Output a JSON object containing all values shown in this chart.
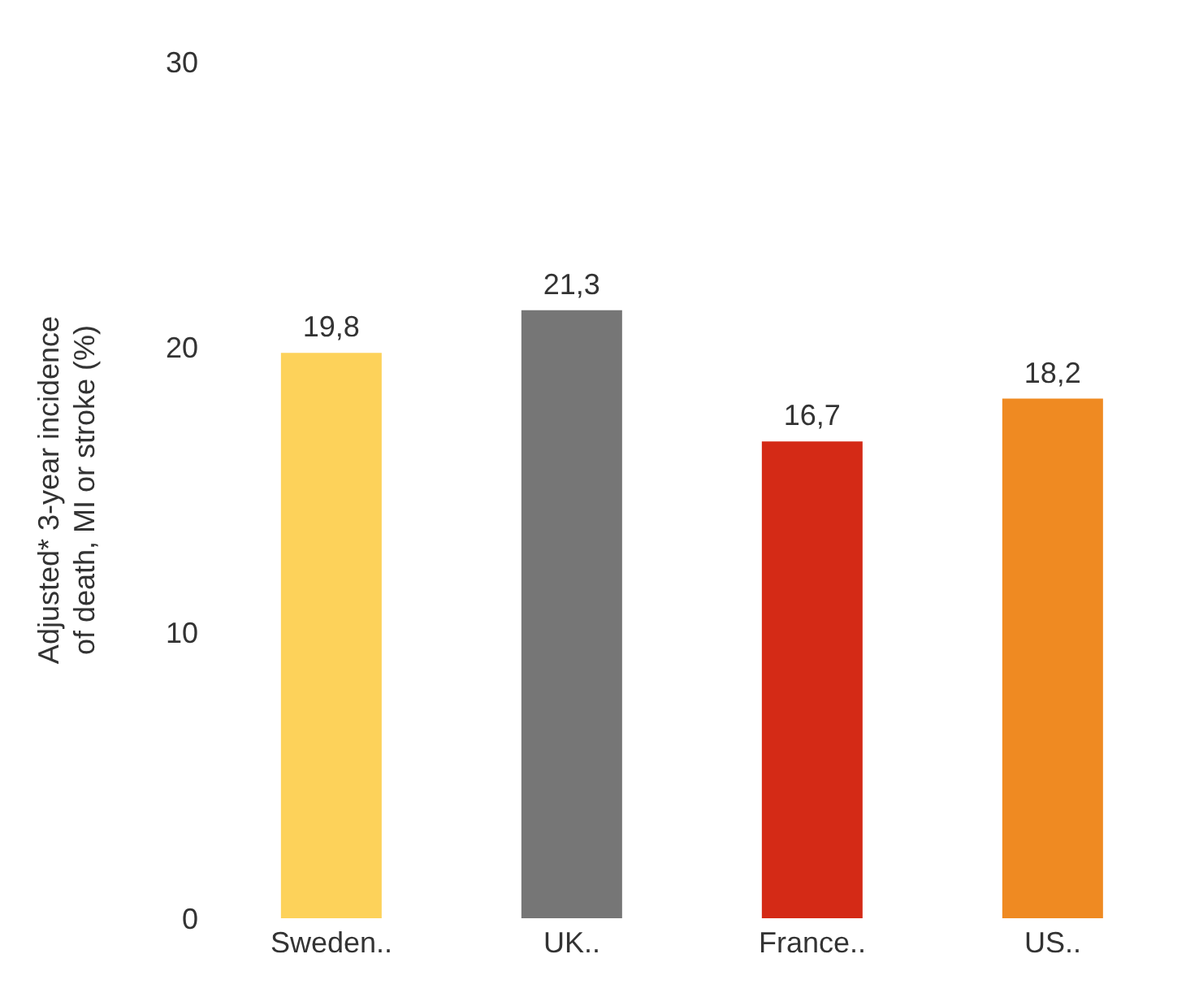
{
  "chart_data": {
    "type": "bar",
    "ylabel": "Adjusted* 3-year incidence of death, MI or stroke (%)",
    "categories": [
      "Sweden..",
      "UK..",
      "France..",
      "US.."
    ],
    "values": [
      19.8,
      21.3,
      16.7,
      18.2
    ],
    "colors": [
      "#fdd25a",
      "#767676",
      "#d42a16",
      "#ef8a22"
    ],
    "value_labels": [
      "19,8",
      "21,3",
      "16,7",
      "18,2"
    ],
    "ylim": [
      0,
      30
    ],
    "yticks": [
      0,
      10,
      20,
      30
    ],
    "grid": false,
    "legend": false
  }
}
